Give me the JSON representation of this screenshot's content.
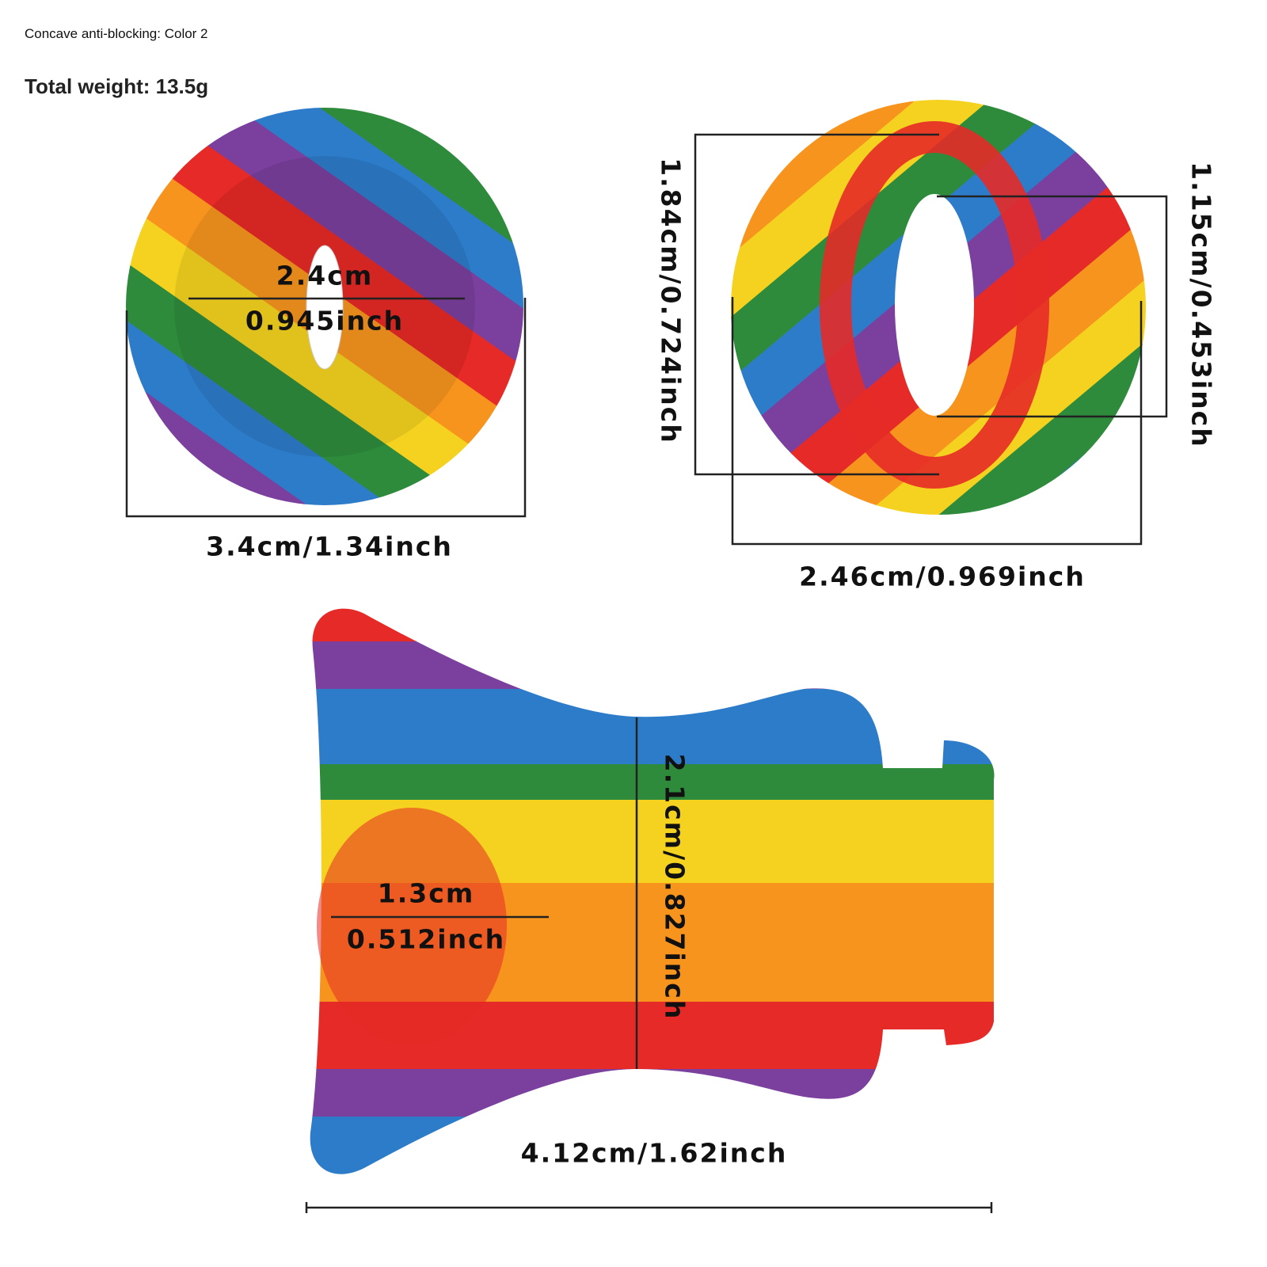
{
  "header": {
    "variant": "Concave anti-blocking: Color 2",
    "weight": "Total weight: 13.5g"
  },
  "front_view": {
    "inner_cm": "2.4cm",
    "inner_inch": "0.945inch",
    "outer": "3.4cm/1.34inch"
  },
  "side_view": {
    "height": "1.84cm/0.724inch",
    "inner_height": "1.15cm/0.453inch",
    "width": "2.46cm/0.969inch"
  },
  "profile_view": {
    "height": "2.1cm/0.827inch",
    "opening_cm": "1.3cm",
    "opening_inch": "0.512inch",
    "length": "4.12cm/1.62inch"
  }
}
